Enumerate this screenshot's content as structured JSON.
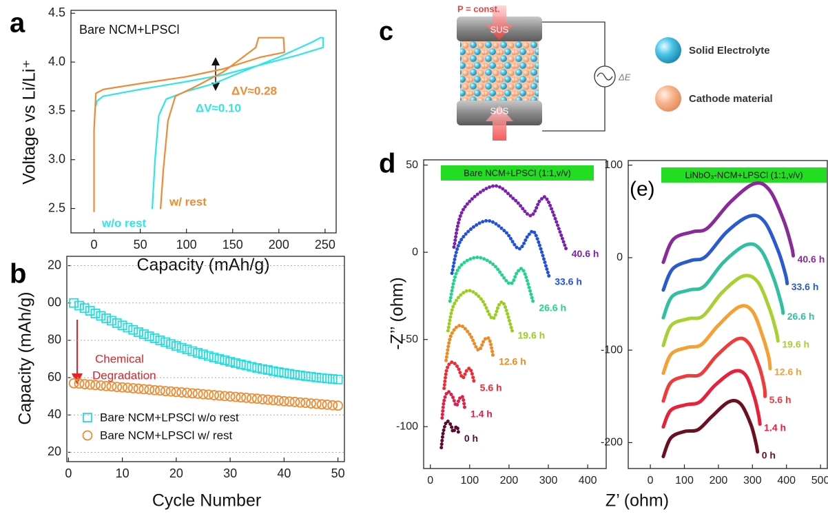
{
  "chart_data": [
    {
      "type": "line",
      "panel": "a",
      "title": "Bare NCM+LPSCl",
      "x_label": "Capacity (mAh/g)",
      "y_label": "Voltage vs Li/Li⁺",
      "xlim": [
        -25,
        262
      ],
      "ylim": [
        2.25,
        4.53
      ],
      "xticks": [
        0,
        50,
        100,
        150,
        200,
        250
      ],
      "yticks": [
        2.5,
        {
          "value": 3,
          "label": "3.0"
        },
        3.5,
        {
          "value": 4,
          "label": "4.0"
        },
        4.5
      ],
      "series": [
        {
          "name": "w/o rest",
          "color": "#2ee6e6",
          "x": [
            63,
            66,
            70,
            78,
            100,
            130,
            160,
            200,
            235,
            245,
            248,
            248,
            220,
            180,
            140,
            100,
            50,
            10,
            3,
            2
          ],
          "values": [
            2.5,
            3.0,
            3.45,
            3.62,
            3.7,
            3.78,
            3.9,
            4.05,
            4.2,
            4.25,
            4.25,
            4.15,
            4.07,
            3.97,
            3.87,
            3.8,
            3.72,
            3.65,
            3.6,
            3.55
          ]
        },
        {
          "name": "w/ rest",
          "color": "#f08a30",
          "x": [
            72,
            75,
            80,
            88,
            110,
            140,
            175,
            178,
            205,
            206,
            180,
            140,
            100,
            50,
            10,
            2,
            0,
            0
          ],
          "values": [
            2.5,
            2.9,
            3.4,
            3.65,
            3.75,
            3.9,
            4.15,
            4.25,
            4.25,
            4.1,
            4.05,
            3.93,
            3.85,
            3.78,
            3.72,
            3.68,
            3.3,
            2.47
          ]
        }
      ],
      "annotations": [
        "ΔV≈0.28",
        "ΔV≈0.10"
      ]
    },
    {
      "type": "scatter",
      "panel": "b",
      "x_label": "Cycle Number",
      "y_label": "Capacity (mAh/g)",
      "xlim": [
        -0.3,
        51.2
      ],
      "ylim": [
        15,
        125
      ],
      "xticks": [
        0,
        10,
        20,
        30,
        40,
        50
      ],
      "yticks": [
        {
          "value": 120,
          "label": "20"
        },
        {
          "value": 100,
          "label": "00"
        },
        80,
        60,
        40,
        20
      ],
      "grid": true,
      "legend": "lower left",
      "x": [
        1,
        2,
        3,
        4,
        5,
        6,
        7,
        8,
        9,
        10,
        11,
        12,
        13,
        14,
        15,
        16,
        17,
        18,
        19,
        20,
        21,
        22,
        23,
        24,
        25,
        26,
        27,
        28,
        29,
        30,
        31,
        32,
        33,
        34,
        35,
        36,
        37,
        38,
        39,
        40,
        41,
        42,
        43,
        44,
        45,
        46,
        47,
        48,
        49,
        50
      ],
      "series": [
        {
          "name": "Bare NCM+LPSCl w/o rest",
          "color": "#22dddd",
          "marker": "square",
          "values": [
            100.0,
            98.6,
            97.2,
            95.8,
            94.4,
            93.1,
            91.8,
            90.5,
            89.2,
            88.0,
            86.8,
            85.6,
            84.4,
            83.3,
            82.2,
            81.1,
            80.0,
            79.0,
            78.0,
            77.0,
            76.0,
            75.1,
            74.2,
            73.3,
            72.5,
            71.6,
            70.8,
            70.0,
            69.3,
            68.5,
            67.8,
            67.1,
            66.5,
            65.8,
            65.2,
            64.6,
            64.1,
            63.5,
            63.0,
            62.5,
            62.1,
            61.6,
            61.2,
            60.8,
            60.5,
            60.1,
            59.8,
            59.5,
            59.3,
            59.0
          ]
        },
        {
          "name": "Bare NCM+LPSCl w/ rest",
          "color": "#f08a30",
          "marker": "circle",
          "values": [
            57.0,
            56.8,
            56.5,
            56.3,
            56.0,
            55.8,
            55.5,
            55.3,
            55.0,
            54.8,
            54.6,
            54.3,
            54.1,
            53.8,
            53.6,
            53.3,
            53.1,
            52.8,
            52.6,
            52.3,
            52.1,
            51.9,
            51.6,
            51.4,
            51.1,
            50.9,
            50.6,
            50.4,
            50.1,
            49.9,
            49.7,
            49.4,
            49.2,
            48.9,
            48.7,
            48.4,
            48.2,
            47.9,
            47.7,
            47.4,
            47.2,
            47.0,
            46.7,
            46.5,
            46.2,
            46.0,
            45.7,
            45.5,
            45.2,
            45.0
          ]
        }
      ],
      "annotations": [
        "Chemical",
        "Degradation"
      ]
    },
    {
      "type": "line",
      "panel": "d",
      "title": "Bare NCM+LPSCl (1:1,v/v)",
      "x_label": "Z’ (ohm)",
      "y_label": "-Z’’ (ohm)",
      "xlim": [
        -17,
        447
      ],
      "ylim": [
        -124,
        53
      ],
      "xticks": [
        0,
        100,
        200,
        300,
        400
      ],
      "yticks": [
        50,
        0,
        -50,
        -100
      ],
      "series": [
        {
          "name": "0 h",
          "color": "#5c0a2e",
          "x": [
            28,
            33,
            42,
            52,
            58,
            63,
            68,
            72
          ],
          "values": [
            -112,
            -103,
            -97,
            -99,
            -103,
            -101,
            -100,
            -104
          ]
        },
        {
          "name": "1.4 h",
          "color": "#e0204a",
          "x": [
            30,
            35,
            45,
            57,
            66,
            74,
            82,
            88
          ],
          "values": [
            -95,
            -85,
            -80,
            -83,
            -88,
            -84,
            -83,
            -90
          ]
        },
        {
          "name": "5.6 h",
          "color": "#f02a30",
          "x": [
            35,
            42,
            55,
            70,
            82,
            92,
            102,
            112
          ],
          "values": [
            -78,
            -67,
            -63,
            -66,
            -72,
            -68,
            -67,
            -75
          ]
        },
        {
          "name": "12.6 h",
          "color": "#f08a20",
          "x": [
            40,
            52,
            75,
            100,
            122,
            138,
            150,
            160
          ],
          "values": [
            -62,
            -48,
            -42,
            -47,
            -56,
            -50,
            -50,
            -60
          ]
        },
        {
          "name": "19.6 h",
          "color": "#9acd20",
          "x": [
            45,
            60,
            95,
            130,
            158,
            175,
            188,
            208
          ],
          "values": [
            -45,
            -30,
            -22,
            -27,
            -38,
            -30,
            -30,
            -45
          ]
        },
        {
          "name": "26.6 h",
          "color": "#22d48a",
          "x": [
            50,
            70,
            115,
            160,
            202,
            222,
            238,
            262
          ],
          "values": [
            -28,
            -10,
            -3,
            -7,
            -18,
            -11,
            -11,
            -29
          ]
        },
        {
          "name": "33.6 h",
          "color": "#2050e0",
          "x": [
            55,
            78,
            140,
            190,
            225,
            250,
            268,
            302
          ],
          "values": [
            -12,
            7,
            18,
            12,
            2,
            10,
            10,
            -14
          ]
        },
        {
          "name": "40.6 h",
          "color": "#7a20b0",
          "x": [
            60,
            85,
            160,
            215,
            255,
            280,
            300,
            345
          ],
          "values": [
            3,
            25,
            38,
            30,
            21,
            30,
            29,
            2
          ]
        }
      ]
    },
    {
      "type": "line",
      "panel": "(e)",
      "title": "LiNbO₃-NCM+LPSCl (1:1,v/v)",
      "xlim": [
        -65,
        520
      ],
      "ylim": [
        -228,
        105
      ],
      "xticks": [
        0,
        100,
        200,
        300,
        400,
        500
      ],
      "yticks": [
        100,
        0,
        -100,
        -200
      ],
      "series": [
        {
          "name": "0 h",
          "color": "#6a1020",
          "x": [
            38,
            60,
            100,
            140,
            180,
            230,
            265,
            295,
            310,
            315
          ],
          "values": [
            -215,
            -195,
            -188,
            -186,
            -172,
            -156,
            -158,
            -180,
            -200,
            -210
          ]
        },
        {
          "name": "1.4 h",
          "color": "#e8203a",
          "x": [
            38,
            60,
            105,
            145,
            190,
            245,
            280,
            305,
            318,
            322
          ],
          "values": [
            -183,
            -165,
            -159,
            -156,
            -138,
            -123,
            -127,
            -150,
            -170,
            -180
          ]
        },
        {
          "name": "5.6 h",
          "color": "#f23a3a",
          "x": [
            38,
            60,
            105,
            148,
            195,
            255,
            290,
            320,
            335,
            337
          ],
          "values": [
            -155,
            -135,
            -128,
            -126,
            -106,
            -88,
            -93,
            -118,
            -140,
            -150
          ]
        },
        {
          "name": "12.6 h",
          "color": "#f5a030",
          "x": [
            38,
            62,
            110,
            150,
            200,
            262,
            300,
            330,
            348,
            352
          ],
          "values": [
            -125,
            -104,
            -97,
            -94,
            -73,
            -53,
            -58,
            -85,
            -108,
            -120
          ]
        },
        {
          "name": "19.6 h",
          "color": "#a8d030",
          "x": [
            38,
            62,
            112,
            155,
            210,
            272,
            315,
            350,
            370,
            375
          ],
          "values": [
            -95,
            -73,
            -66,
            -63,
            -38,
            -20,
            -26,
            -55,
            -80,
            -90
          ]
        },
        {
          "name": "26.6 h",
          "color": "#30c0a0",
          "x": [
            38,
            64,
            115,
            158,
            215,
            283,
            325,
            362,
            385,
            390
          ],
          "values": [
            -65,
            -42,
            -35,
            -31,
            -5,
            14,
            8,
            -22,
            -50,
            -60
          ]
        },
        {
          "name": "33.6 h",
          "color": "#2a5ad0",
          "x": [
            38,
            66,
            120,
            162,
            225,
            292,
            335,
            375,
            397,
            402
          ],
          "values": [
            -35,
            -12,
            -3,
            1,
            28,
            45,
            39,
            8,
            -18,
            -28
          ]
        },
        {
          "name": "40.6 h",
          "color": "#8a2a9a",
          "x": [
            38,
            68,
            125,
            168,
            235,
            305,
            350,
            392,
            415,
            420
          ],
          "values": [
            -5,
            20,
            28,
            32,
            60,
            80,
            73,
            40,
            12,
            2
          ]
        }
      ]
    }
  ],
  "diagram": {
    "panel": "c",
    "pressure": "P = const.",
    "top_plate": "SUS",
    "bottom_plate": "SUS",
    "voltage": "ΔE",
    "legend": [
      "Solid Electrolyte",
      "Cathode material"
    ]
  }
}
